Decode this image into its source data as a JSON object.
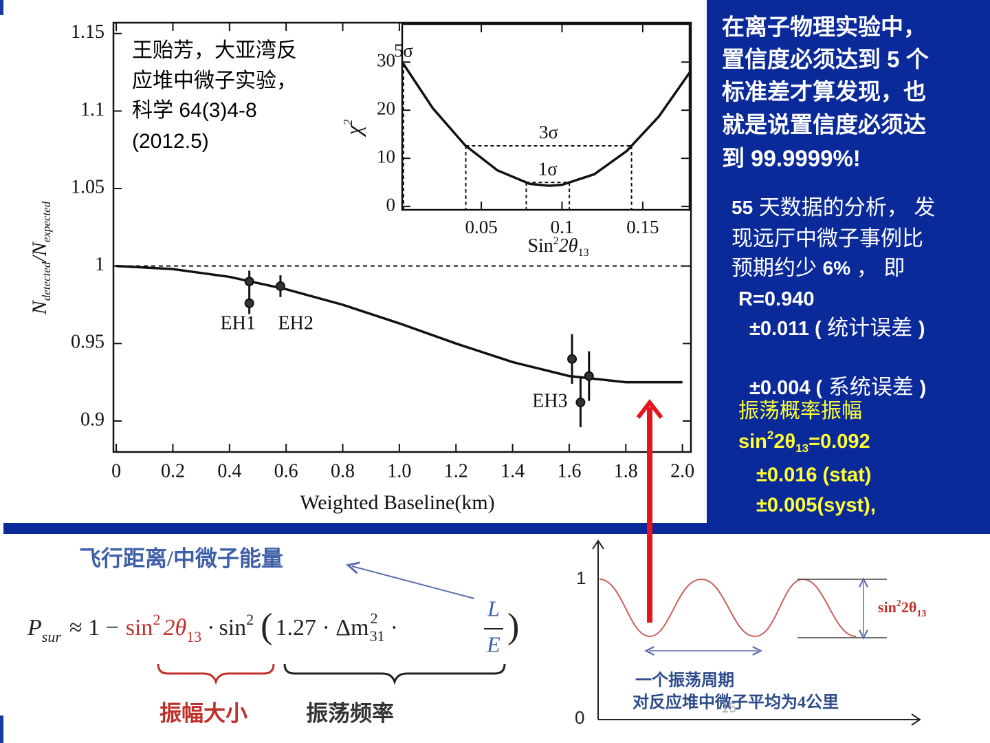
{
  "chart_data": [
    {
      "type": "errorbar",
      "xlabel": "Weighted Baseline(km)",
      "ylabel": [
        "N",
        "detected",
        "/N",
        "expected"
      ],
      "xlim": [
        -0.01,
        2.03
      ],
      "ylim": [
        0.88,
        1.157
      ],
      "xticks": [
        0,
        0.2,
        0.4,
        0.6,
        0.8,
        {
          "value": 1,
          "label": "1.0"
        },
        1.2,
        1.4,
        1.6,
        1.8,
        {
          "value": 2,
          "label": "2.0"
        }
      ],
      "yticks": [
        0.9,
        0.95,
        1,
        1.05,
        1.1,
        1.15
      ],
      "reference_line": 1,
      "curve": {
        "x": [
          0,
          0.2,
          0.4,
          0.6,
          0.8,
          1.0,
          1.2,
          1.4,
          1.6,
          1.8,
          2.0
        ],
        "values": [
          1,
          0.998,
          0.993,
          0.985,
          0.975,
          0.963,
          0.95,
          0.938,
          0.929,
          0.925,
          0.925
        ]
      },
      "points": {
        "x": [
          0.47,
          0.47,
          0.58,
          1.61,
          1.64,
          1.67
        ],
        "values": [
          0.99,
          0.976,
          0.987,
          0.94,
          0.912,
          0.929
        ],
        "errors": [
          0.007,
          0.007,
          0.007,
          0.016,
          0.016,
          0.016
        ]
      },
      "annotations": [
        {
          "text": "EH1",
          "x": 0.43,
          "y": 0.962
        },
        {
          "text": "EH2",
          "x": 0.634,
          "y": 0.962
        },
        {
          "text": "EH3",
          "x": 1.532,
          "y": 0.912
        }
      ]
    },
    {
      "type": "line",
      "xlabel": [
        "Sin",
        "2",
        "2θ",
        "13"
      ],
      "ylabel": [
        "χ",
        "2"
      ],
      "xlim": [
        0.001,
        0.179
      ],
      "ylim": [
        -0.7,
        37.9
      ],
      "xticks": [
        0.05,
        0.1,
        0.15
      ],
      "yticks": [
        0,
        10,
        20,
        30
      ],
      "curve": {
        "x": [
          0.001,
          0.02,
          0.04,
          0.06,
          0.08,
          0.092,
          0.1,
          0.12,
          0.14,
          0.16,
          0.179
        ],
        "values": [
          30,
          20.4,
          12.7,
          7.5,
          4.7,
          4.3,
          4.5,
          6.7,
          11.5,
          18.7,
          27.8
        ]
      },
      "levels": [
        {
          "label": "5σ",
          "value": 29.6
        },
        {
          "label": "3σ",
          "value": 12.6
        },
        {
          "label": "1σ",
          "value": 5
        }
      ]
    }
  ],
  "citation": [
    "王贻芳，大亚湾反",
    "应堆中微子实验，",
    "科学  64(3)4-8",
    "(2012.5)"
  ],
  "panel": {
    "heading": [
      "在离子物理实验中，",
      "置信度必须达到 5 个",
      "标准差才算发现，也",
      "就是说置信度必须达",
      "到 99.9999%!"
    ],
    "body": [
      [
        "55",
        " 天数据的分析， 发"
      ],
      [
        "现远厅中微子事例比"
      ],
      [
        "预期约少 ",
        "6%",
        " ， 即"
      ],
      [
        "R=0.940"
      ],
      [
        "±0.011 (",
        " 统计误差 ",
        ")"
      ],
      [
        "±0.004 (",
        " 系统误差 ",
        ")"
      ]
    ],
    "result": {
      "title": "振荡概率振幅",
      "value": [
        "sin",
        "2",
        "2θ",
        "13",
        "=0.092"
      ],
      "stat": "±0.016 (stat)",
      "syst": "±0.005(syst),"
    }
  },
  "formula": {
    "note": "飞行距离/中微子能量",
    "lhs": "P",
    "lhs_sub": "sur",
    "relation": "≈ 1 −",
    "amp": [
      "sin",
      "2",
      "2θ",
      "13"
    ],
    "dot": "·",
    "freq": [
      "sin",
      "2"
    ],
    "open": "(",
    "const": "1.27 · Δm",
    "m_sup": "2",
    "m_sub": "31",
    "dot2": "·",
    "num": "L",
    "den": "E",
    "close": ")",
    "amp_label": "振幅大小",
    "freq_label": "振荡频率"
  },
  "sketch": {
    "y_max_label": "1",
    "y_min_label": "0",
    "amplitude_label": [
      "sin",
      "2",
      "2θ",
      "13"
    ],
    "period_label": [
      "一个振荡周期",
      "对反应堆中微子平均为4公里"
    ]
  },
  "page_number": "15"
}
